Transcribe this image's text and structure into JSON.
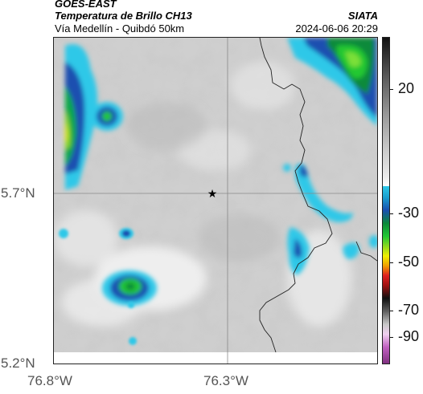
{
  "header": {
    "satellite": "GOES-EAST",
    "product": "Temperatura de Brillo CH13",
    "route": "Vía Medellín - Quibdó 50km",
    "org": "SIATA",
    "datetime": "2024-06-06 20:29"
  },
  "map": {
    "lat_labels": [
      "5.7°N",
      "5.2°N"
    ],
    "lon_labels": [
      "76.8°W",
      "76.3°W"
    ],
    "marker": "star-marker"
  },
  "colorbar": {
    "ticks": [
      "20",
      "-30",
      "-50",
      "-70",
      "-90"
    ],
    "colors": {
      "warm_top": "#111111",
      "cyan": "#2ec8e8",
      "blue": "#1a4fb0",
      "green": "#22c833",
      "yellow": "#f0f000",
      "red": "#e02020",
      "magenta": "#b040b0"
    }
  }
}
